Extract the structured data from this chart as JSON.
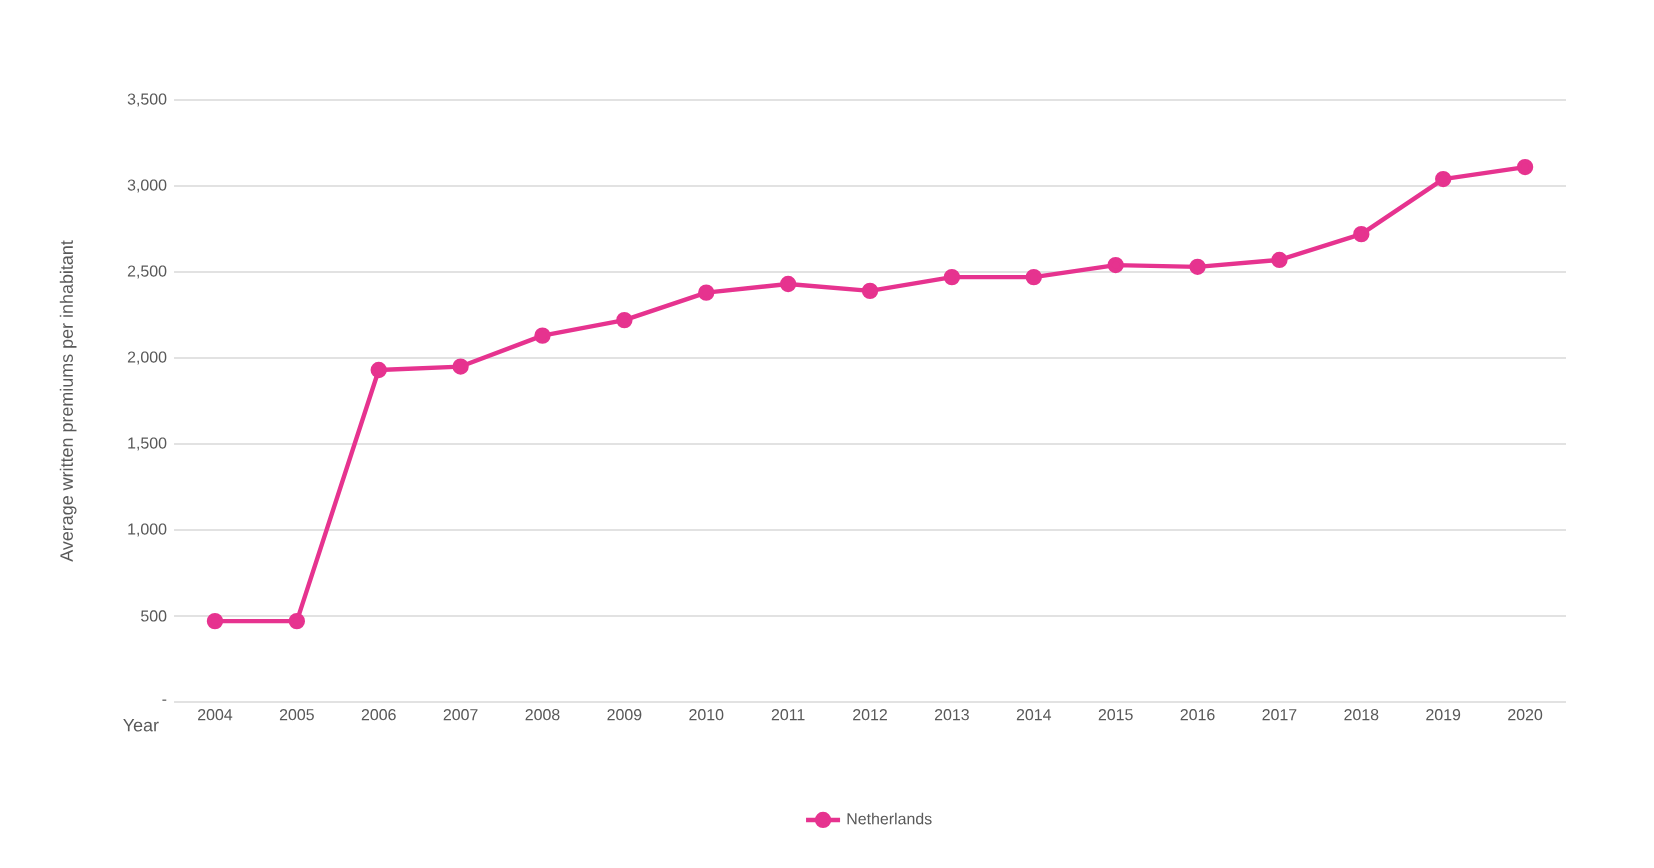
{
  "chart_data": {
    "type": "line",
    "ylabel": "Average written premiums per inhabitant",
    "xlabel": "Year",
    "categories": [
      "2004",
      "2005",
      "2006",
      "2007",
      "2008",
      "2009",
      "2010",
      "2011",
      "2012",
      "2013",
      "2014",
      "2015",
      "2016",
      "2017",
      "2018",
      "2019",
      "2020"
    ],
    "series": [
      {
        "name": "Netherlands",
        "color": "#e6338f",
        "values": [
          470,
          470,
          1930,
          1950,
          2130,
          2220,
          2380,
          2430,
          2390,
          2470,
          2470,
          2540,
          2530,
          2570,
          2720,
          3040,
          3110
        ]
      }
    ],
    "ylim": [
      0,
      3500
    ],
    "yticks": [
      {
        "value": 0,
        "label": "-"
      },
      500,
      {
        "value": 1000,
        "label": "1,000"
      },
      {
        "value": 1500,
        "label": "1,500"
      },
      {
        "value": 2000,
        "label": "2,000"
      },
      {
        "value": 2500,
        "label": "2,500"
      },
      {
        "value": 3000,
        "label": "3,000"
      },
      {
        "value": 3500,
        "label": "3,500"
      }
    ],
    "grid": "y",
    "legend": "bottom",
    "marker": "circle",
    "line_style": "solid"
  }
}
